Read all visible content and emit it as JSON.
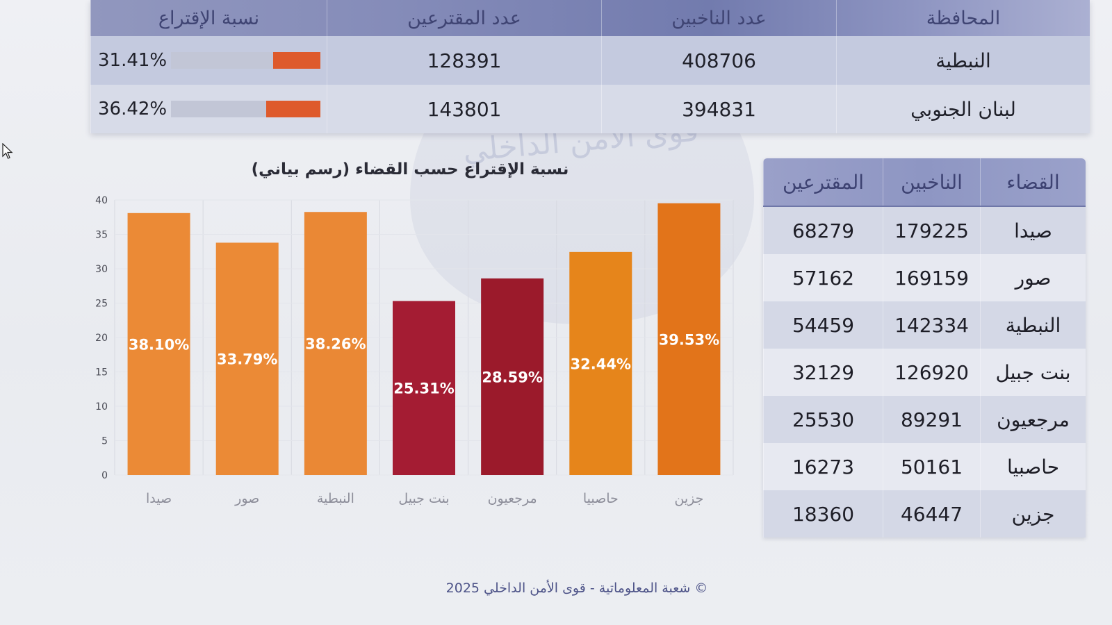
{
  "summary_table": {
    "headers": {
      "governorate": "المحافظة",
      "voters": "عدد الناخبين",
      "ballots": "عدد المقترعين",
      "turnout": "نسبة الإقتراع"
    },
    "rows": [
      {
        "governorate": "النبطية",
        "voters": 408706,
        "ballots": 128391,
        "turnout": "31.41%",
        "turnout_value": 31.41
      },
      {
        "governorate": "لبنان الجنوبي",
        "voters": 394831,
        "ballots": 143801,
        "turnout": "36.42%",
        "turnout_value": 36.42
      }
    ],
    "bar_color": "#de5a2b"
  },
  "chart_data": {
    "type": "bar",
    "title": "نسبة الإقتراع حسب القضاء (رسم بياني)",
    "categories": [
      "صيدا",
      "صور",
      "النبطية",
      "بنت جبيل",
      "مرجعيون",
      "حاصبيا",
      "جزين"
    ],
    "values": [
      38.1,
      33.79,
      38.26,
      25.31,
      28.59,
      32.44,
      39.53
    ],
    "data_labels": [
      "38.10%",
      "33.79%",
      "38.26%",
      "25.31%",
      "28.59%",
      "32.44%",
      "39.53%"
    ],
    "colors": [
      "#eb8a36",
      "#eb8a36",
      "#ea8835",
      "#a41c33",
      "#9b1a2b",
      "#e6851b",
      "#e2741a"
    ],
    "ylim": [
      0,
      40
    ],
    "yticks": [
      0,
      5,
      10,
      15,
      20,
      25,
      30,
      35,
      40
    ],
    "xlabel": "",
    "ylabel": "",
    "grid": true
  },
  "district_table": {
    "headers": {
      "district": "القضاء",
      "voters": "الناخبين",
      "ballots": "المقترعين"
    },
    "rows": [
      {
        "district": "صيدا",
        "voters": 179225,
        "ballots": 68279
      },
      {
        "district": "صور",
        "voters": 169159,
        "ballots": 57162
      },
      {
        "district": "النبطية",
        "voters": 142334,
        "ballots": 54459
      },
      {
        "district": "بنت جبيل",
        "voters": 126920,
        "ballots": 32129
      },
      {
        "district": "مرجعيون",
        "voters": 89291,
        "ballots": 25530
      },
      {
        "district": "حاصبيا",
        "voters": 50161,
        "ballots": 16273
      },
      {
        "district": "جزين",
        "voters": 46447,
        "ballots": 18360
      }
    ]
  },
  "footer": {
    "text": "© شعبة المعلوماتية - قوى الأمن الداخلي 2025"
  },
  "watermark": {
    "text": "قوى الأمن الداخلي"
  },
  "icons": {
    "cursor": "mouse-cursor-icon",
    "logo": "isf-logo-watermark",
    "cedar": "cedar-icon"
  }
}
